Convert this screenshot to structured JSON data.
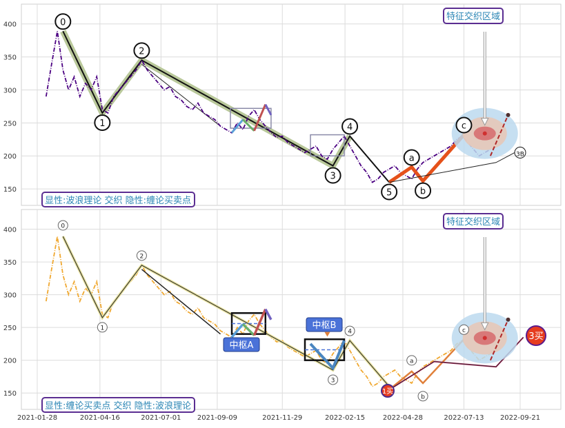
{
  "chart_data": [
    {
      "type": "line",
      "panel": "top",
      "annotation_box": "显性:波浪理论 交织 隐性:缠论买卖点",
      "feature_box": "特征交织区域",
      "ylim": [
        125,
        430
      ],
      "yticks": [
        150,
        200,
        250,
        300,
        350,
        400
      ],
      "grid": true,
      "price_series": {
        "color": "#4b0082",
        "style": "dash-dot",
        "x": [
          "2021-02-08",
          "2021-02-15",
          "2021-02-22",
          "2021-03-01",
          "2021-03-08",
          "2021-03-15",
          "2021-03-22",
          "2021-03-29",
          "2021-04-05",
          "2021-04-12",
          "2021-04-19",
          "2021-04-26",
          "2021-05-03",
          "2021-05-10",
          "2021-05-17",
          "2021-05-24",
          "2021-05-31",
          "2021-06-07",
          "2021-06-14",
          "2021-06-21",
          "2021-06-28",
          "2021-07-05",
          "2021-07-12",
          "2021-07-19",
          "2021-07-26",
          "2021-08-02",
          "2021-08-09",
          "2021-08-16",
          "2021-08-23",
          "2021-08-30",
          "2021-09-06",
          "2021-09-13",
          "2021-09-20",
          "2021-09-27",
          "2021-10-04",
          "2021-10-11",
          "2021-10-18",
          "2021-10-25",
          "2021-11-01",
          "2021-11-08",
          "2021-11-15",
          "2021-11-22",
          "2021-11-29",
          "2021-12-06",
          "2021-12-13",
          "2021-12-20",
          "2021-12-27",
          "2022-01-03",
          "2022-01-10",
          "2022-01-17",
          "2022-01-24",
          "2022-01-31",
          "2022-02-07",
          "2022-02-14",
          "2022-02-21",
          "2022-02-28",
          "2022-03-07",
          "2022-03-14",
          "2022-03-21",
          "2022-03-28",
          "2022-04-04",
          "2022-04-11",
          "2022-04-18",
          "2022-04-25",
          "2022-05-02",
          "2022-05-09",
          "2022-05-16",
          "2022-05-23",
          "2022-05-30",
          "2022-06-06",
          "2022-06-13",
          "2022-06-20",
          "2022-06-27",
          "2022-07-04",
          "2022-07-11",
          "2022-07-18",
          "2022-07-25",
          "2022-08-01",
          "2022-08-08",
          "2022-08-15"
        ],
        "y": [
          290,
          340,
          389,
          330,
          300,
          320,
          290,
          310,
          300,
          320,
          270,
          265,
          290,
          300,
          310,
          320,
          330,
          345,
          330,
          320,
          310,
          300,
          305,
          290,
          285,
          275,
          270,
          280,
          265,
          260,
          255,
          245,
          240,
          235,
          250,
          240,
          260,
          270,
          255,
          245,
          235,
          228,
          230,
          220,
          215,
          210,
          205,
          210,
          215,
          200,
          195,
          210,
          220,
          230,
          215,
          200,
          185,
          175,
          160,
          165,
          175,
          180,
          185,
          175,
          170,
          165,
          180,
          190,
          195,
          200,
          205,
          210,
          215,
          225,
          230,
          220,
          210,
          200,
          205,
          210
        ]
      },
      "wave_labels": [
        {
          "label": "0",
          "x": "2021-03-01",
          "y": 389
        },
        {
          "label": "1",
          "x": "2021-04-19",
          "y": 265
        },
        {
          "label": "2",
          "x": "2021-06-07",
          "y": 345
        },
        {
          "label": "3",
          "x": "2022-01-31",
          "y": 185
        },
        {
          "label": "4",
          "x": "2022-02-21",
          "y": 230
        },
        {
          "label": "5",
          "x": "2022-04-11",
          "y": 160
        },
        {
          "label": "a",
          "x": "2022-05-09",
          "y": 183
        },
        {
          "label": "b",
          "x": "2022-05-23",
          "y": 162
        },
        {
          "label": "c",
          "x": "2022-07-13",
          "y": 232
        },
        {
          "label": "3B",
          "x": "2022-09-21",
          "y": 205
        }
      ]
    },
    {
      "type": "line",
      "panel": "bottom",
      "annotation_box": "显性:缠论买卖点 交织 隐性:波浪理论",
      "feature_box": "特征交织区域",
      "ylim": [
        125,
        430
      ],
      "yticks": [
        150,
        200,
        250,
        300,
        350,
        400
      ],
      "grid": true,
      "price_series": {
        "color": "#f0a830",
        "style": "dash-dot"
      },
      "zhongshu": [
        {
          "label": "中枢A",
          "from": "2021-10-04",
          "to": "2021-11-08",
          "low": 240,
          "high": 272
        },
        {
          "label": "中枢B",
          "from": "2022-01-03",
          "to": "2022-02-14",
          "low": 200,
          "high": 232
        }
      ],
      "buy_points": [
        {
          "label": "1买",
          "x": "2022-04-11",
          "y": 150
        },
        {
          "label": "3买",
          "x": "2022-09-25",
          "y": 235
        }
      ],
      "wave_labels": [
        "0",
        "1",
        "2",
        "3",
        "4",
        "a",
        "b",
        "c"
      ]
    }
  ],
  "x_axis": {
    "ticks": [
      "2021-01-28",
      "2021-04-16",
      "2021-07-01",
      "2021-09-09",
      "2021-11-29",
      "2022-02-15",
      "2022-04-28",
      "2022-07-13",
      "2022-09-21"
    ]
  },
  "y_axis": {
    "ticks": [
      "150",
      "200",
      "250",
      "300",
      "350",
      "400"
    ]
  }
}
